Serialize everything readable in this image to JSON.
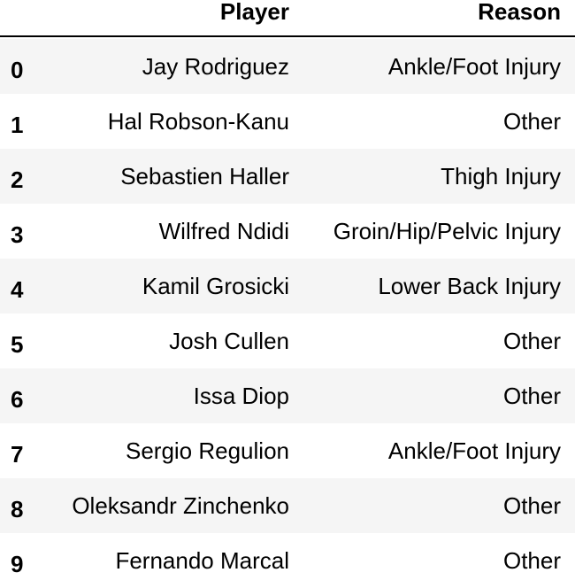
{
  "table": {
    "columns": {
      "player": "Player",
      "reason": "Reason"
    },
    "rows": [
      {
        "index": "0",
        "player": "Jay Rodriguez",
        "reason": "Ankle/Foot Injury"
      },
      {
        "index": "1",
        "player": "Hal Robson-Kanu",
        "reason": "Other"
      },
      {
        "index": "2",
        "player": "Sebastien Haller",
        "reason": "Thigh Injury"
      },
      {
        "index": "3",
        "player": "Wilfred Ndidi",
        "reason": "Groin/Hip/Pelvic Injury"
      },
      {
        "index": "4",
        "player": "Kamil Grosicki",
        "reason": "Lower Back Injury"
      },
      {
        "index": "5",
        "player": "Josh Cullen",
        "reason": "Other"
      },
      {
        "index": "6",
        "player": "Issa Diop",
        "reason": "Other"
      },
      {
        "index": "7",
        "player": "Sergio Regulion",
        "reason": "Ankle/Foot Injury"
      },
      {
        "index": "8",
        "player": "Oleksandr Zinchenko",
        "reason": "Other"
      },
      {
        "index": "9",
        "player": "Fernando Marcal",
        "reason": "Other"
      }
    ]
  }
}
